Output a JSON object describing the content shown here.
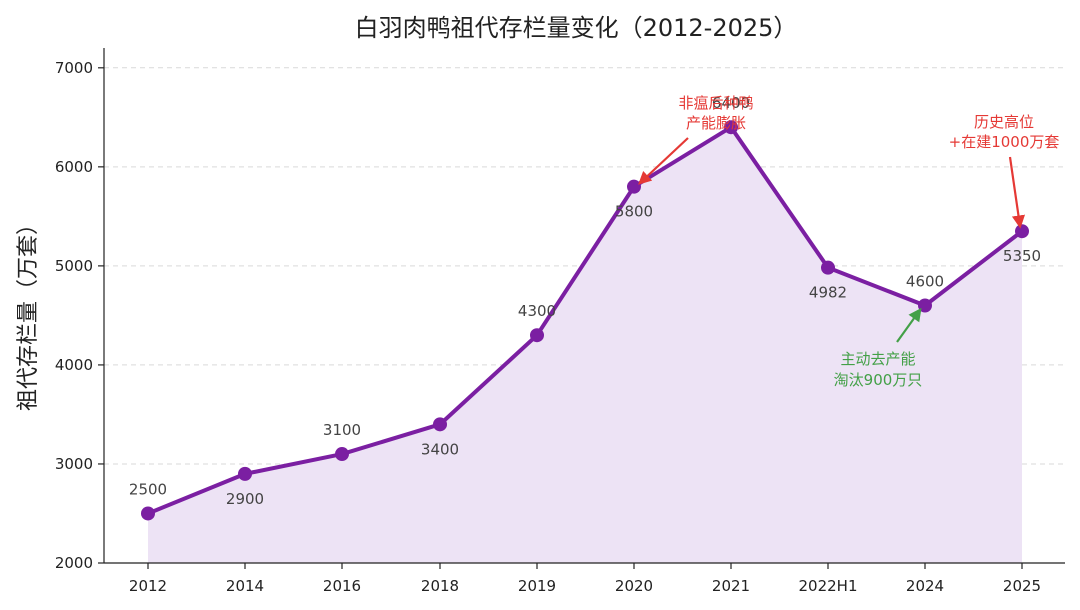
{
  "chart_data": {
    "type": "line",
    "title": "白羽肉鸭祖代存栏量变化（2012-2025）",
    "xlabel": "",
    "ylabel": "祖代存栏量（万套）",
    "categories": [
      "2012",
      "2014",
      "2016",
      "2018",
      "2019",
      "2020",
      "2021",
      "2022H1",
      "2024",
      "2025"
    ],
    "values": [
      2500,
      2900,
      3100,
      3400,
      4300,
      5800,
      6400,
      4982,
      4600,
      5350
    ],
    "data_labels": [
      "2500",
      "2900",
      "3100",
      "3400",
      "4300",
      "5800",
      "6400",
      "4982",
      "4600",
      "5350"
    ],
    "label_side": [
      "above",
      "below",
      "above",
      "below",
      "above",
      "below",
      "above",
      "below",
      "above",
      "below"
    ],
    "ylim": [
      2000,
      7200
    ],
    "yticks": [
      2000,
      3000,
      4000,
      5000,
      6000,
      7000
    ],
    "grid": "horizontal dashed",
    "legend": "none",
    "colors": {
      "line": "#7b1fa2",
      "fill": "#ede3f5",
      "grid": "#d9d9d9",
      "red": "#e53935",
      "green": "#43a047"
    },
    "annotations": [
      {
        "lines": [
          "非瘟后种鸭",
          "产能膨胀"
        ],
        "color": "#e53935",
        "target_index": 5
      },
      {
        "lines": [
          "历史高位",
          "+在建1000万套"
        ],
        "color": "#e53935",
        "target_index": 9
      },
      {
        "lines": [
          "主动去产能",
          "淘汰900万只"
        ],
        "color": "#43a047",
        "target_index": 8
      }
    ]
  }
}
